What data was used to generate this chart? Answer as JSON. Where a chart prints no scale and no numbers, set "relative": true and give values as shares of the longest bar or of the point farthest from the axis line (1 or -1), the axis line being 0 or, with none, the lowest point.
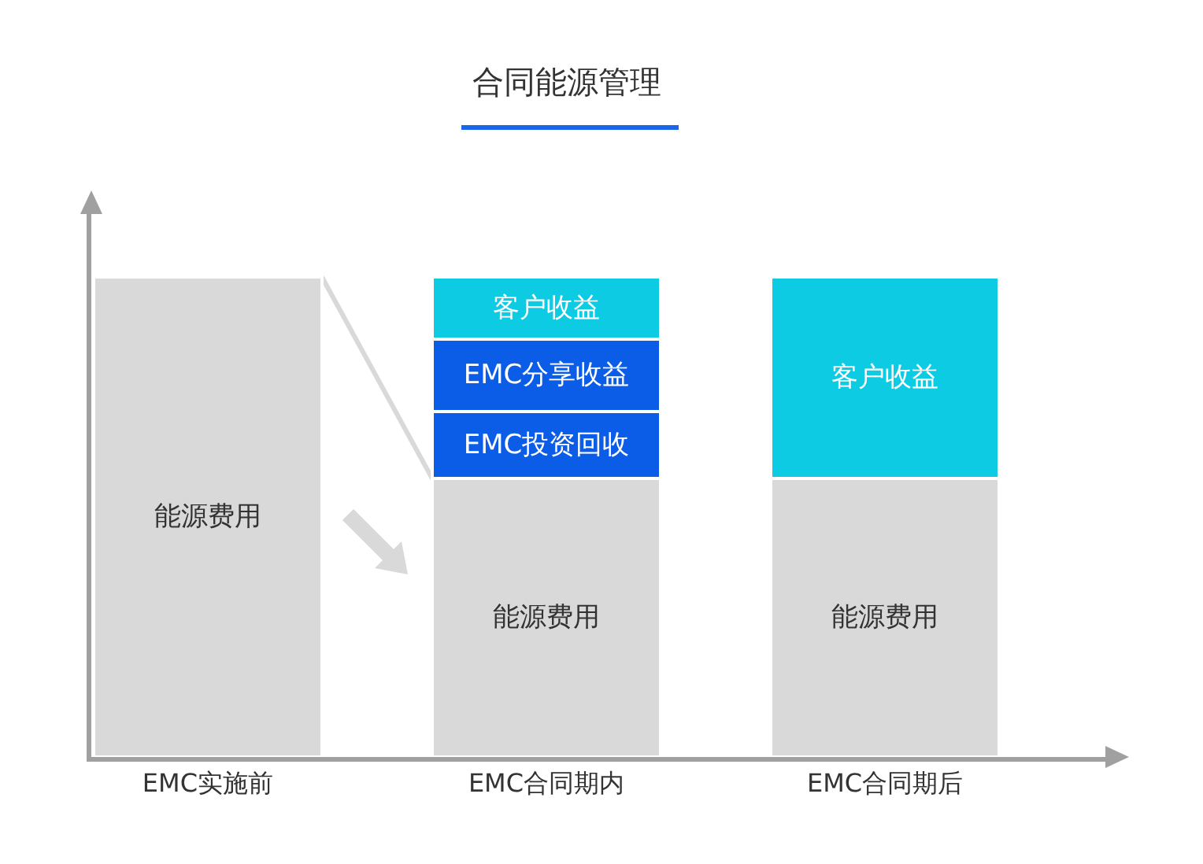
{
  "chart_data": {
    "type": "bar",
    "title": "合同能源管理",
    "categories": [
      "EMC实施前",
      "EMC合同期内",
      "EMC合同期后"
    ],
    "stacked": true,
    "relative": true,
    "legend": false,
    "series": [
      {
        "name": "能源费用",
        "color": "#d9d9d9",
        "values": [
          1,
          0.58,
          0.58
        ]
      },
      {
        "name": "EMC投资回收",
        "color": "#0b5ce6",
        "values": [
          null,
          0.14,
          null
        ]
      },
      {
        "name": "EMC分享收益",
        "color": "#0b5ce6",
        "values": [
          null,
          0.15,
          null
        ]
      },
      {
        "name": "客户收益",
        "color": "#0ccbe3",
        "values": [
          null,
          0.13,
          0.42
        ]
      }
    ]
  }
}
